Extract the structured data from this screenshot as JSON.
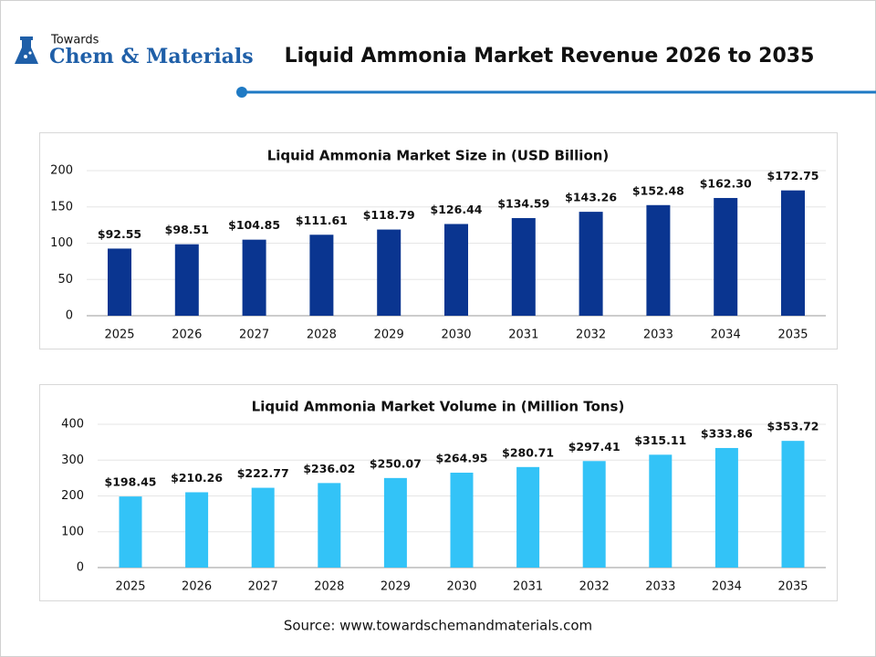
{
  "logo": {
    "line1": "Towards",
    "line2": "Chem & Materials"
  },
  "title": "Liquid Ammonia Market Revenue 2026 to 2035",
  "source": "Source: www.towardschemandmaterials.com",
  "chart_data": [
    {
      "type": "bar",
      "title": "Liquid Ammonia Market Size in (USD Billion)",
      "categories": [
        "2025",
        "2026",
        "2027",
        "2028",
        "2029",
        "2030",
        "2031",
        "2032",
        "2033",
        "2034",
        "2035"
      ],
      "values": [
        92.55,
        98.51,
        104.85,
        111.61,
        118.79,
        126.44,
        134.59,
        143.26,
        152.48,
        162.3,
        172.75
      ],
      "value_labels": [
        "$92.55",
        "$98.51",
        "$104.85",
        "$111.61",
        "$118.79",
        "$126.44",
        "$134.59",
        "$143.26",
        "$152.48",
        "$162.30",
        "$172.75"
      ],
      "color": "#0a3590",
      "ylim": [
        0,
        200
      ],
      "yticks": [
        0,
        50,
        100,
        150,
        200
      ],
      "grid": true
    },
    {
      "type": "bar",
      "title": "Liquid Ammonia Market Volume in (Million Tons)",
      "categories": [
        "2025",
        "2026",
        "2027",
        "2028",
        "2029",
        "2030",
        "2031",
        "2032",
        "2033",
        "2034",
        "2035"
      ],
      "values": [
        198.45,
        210.26,
        222.77,
        236.02,
        250.07,
        264.95,
        280.71,
        297.41,
        315.11,
        333.86,
        353.72
      ],
      "value_labels": [
        "$198.45",
        "$210.26",
        "$222.77",
        "$236.02",
        "$250.07",
        "$264.95",
        "$280.71",
        "$297.41",
        "$315.11",
        "$333.86",
        "$353.72"
      ],
      "color": "#33c3f7",
      "ylim": [
        0,
        400
      ],
      "yticks": [
        0,
        100,
        200,
        300,
        400
      ],
      "grid": true
    }
  ]
}
